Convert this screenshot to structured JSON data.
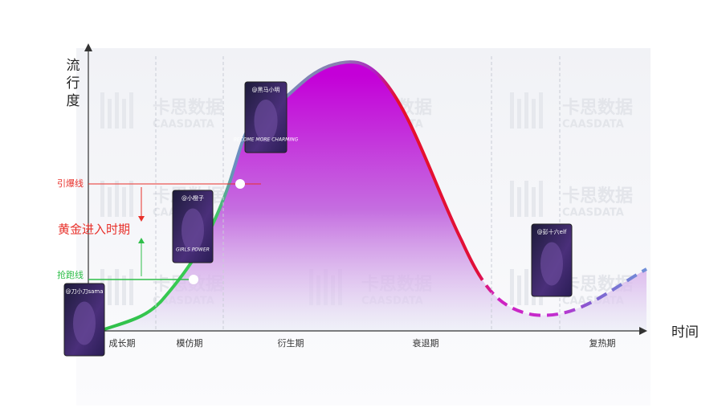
{
  "axes": {
    "y_label": "流行度",
    "x_label": "时间"
  },
  "phases": [
    "成长期",
    "模仿期",
    "衍生期",
    "衰退期",
    "复热期"
  ],
  "lines": {
    "ignite": "引爆线",
    "start": "抢跑线",
    "golden": "黄金进入时期"
  },
  "cards": [
    {
      "handle": "@刀小刀sama"
    },
    {
      "handle": "@小橙子",
      "poster_text": "GIRLS POWER"
    },
    {
      "handle": "@黑马小明",
      "poster_text": "BECOME MORE CHARMING"
    },
    {
      "handle": "@彭十六elf"
    }
  ],
  "watermark": {
    "brand": "卡思数据",
    "latin": "CAASDATA"
  }
}
